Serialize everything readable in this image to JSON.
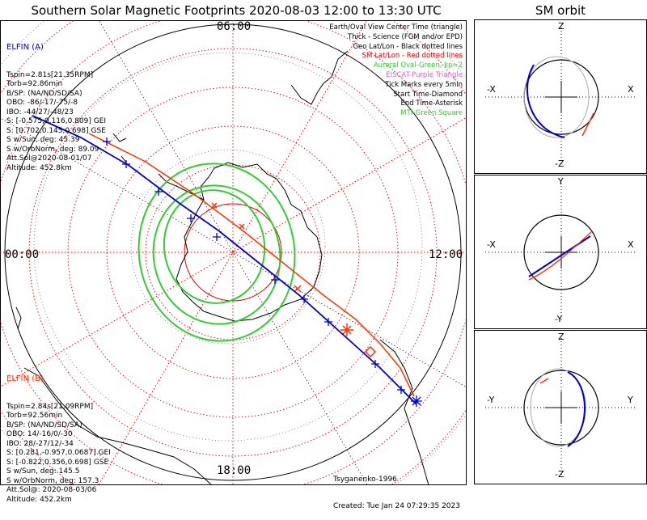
{
  "title": "Southern Solar Magnetic Footprints 2020-08-03 12:00 to 13:30 UTC",
  "orbit_title": "SM orbit",
  "hour_labels": {
    "top": "06:00",
    "left": "00:00",
    "right": "12:00",
    "bottom": "18:00"
  },
  "elfin_a": {
    "name": "ELFIN (A)",
    "lines": [
      "Tspin=2.81s[21.35RPM]",
      "Torb=92.86min",
      "B/SP: (NA/ND/SD/SA)",
      "OBO: -86/-17/-75/-8",
      "IBO: -44/27/-48/23",
      "S: [-0.575,0.116,0.809] GEI",
      "S: [0.702,0.145,0.698] GSE",
      "S w/Sun, deg: 45.39",
      "S w/OrbNorm, deg: 89.09",
      "Att.Sol@2020-08-01/07",
      "Altitude: 452.8km"
    ],
    "color": "#0000cc"
  },
  "elfin_b": {
    "name": "ELFIN (B)",
    "lines": [
      "Tspin=2.84s[21.09RPM]",
      "Torb=92.56min",
      "B/SP: (NA/ND/SD/SA)",
      "OBO: 14/-16/0/-30",
      "IBO: 28/-27/12/-34",
      "S: [0.281,-0.957,0.0687] GEI",
      "S: [-0.822,0.356,0.698] GSE",
      "S w/Sun, deg: 145.5",
      "S w/OrbNorm, deg: 157.3",
      "Att.Sol@: 2020-08-03/06",
      "Altitude: 452.2km"
    ],
    "color": "#ff3300"
  },
  "legend": [
    {
      "text": "Earth/Oval View Center Time (triangle)",
      "color": "#000000"
    },
    {
      "text": "Thick - Science (FGM and/or EPD)",
      "color": "#000000"
    },
    {
      "text": "Geo Lat/Lon - Black dotted lines",
      "color": "#000000"
    },
    {
      "text": "SM Lat/Lon - Red dotted lines",
      "color": "#dd0000"
    },
    {
      "text": "Auroral Oval-Green, kp=2",
      "color": "#33cc33"
    },
    {
      "text": "EISCAT-Purple Triangle",
      "color": "#cc66cc"
    },
    {
      "text": "Tick Marks every 5min",
      "color": "#000000"
    },
    {
      "text": "Start Time-Diamond",
      "color": "#000000"
    },
    {
      "text": "End Time-Asterisk",
      "color": "#000000"
    },
    {
      "text": "MTI-Green Square",
      "color": "#33cc33"
    }
  ],
  "footer": {
    "model": "Tsyganenko-1996",
    "created": "Created: Tue Jan 24 07:29:35 2023"
  },
  "orbit_panels": [
    {
      "top": "Z",
      "bottom": "-Z",
      "left": "-X",
      "right": "X"
    },
    {
      "top": "Y",
      "bottom": "-Y",
      "left": "-X",
      "right": "X"
    },
    {
      "top": "Z",
      "bottom": "-Z",
      "left": "-Y",
      "right": "Y"
    }
  ],
  "chart_data": {
    "type": "polar map",
    "title": "Southern Solar Magnetic Footprints 2020-08-03 12:00 to 13:30 UTC",
    "time_range": [
      "12:00",
      "13:30"
    ],
    "kp": 2,
    "colors": {
      "elfin_a": "#0000cc",
      "elfin_b": "#ff3300",
      "oval": "#33cc33",
      "sm_grid": "#dd0000",
      "geo_grid": "#000000"
    }
  }
}
